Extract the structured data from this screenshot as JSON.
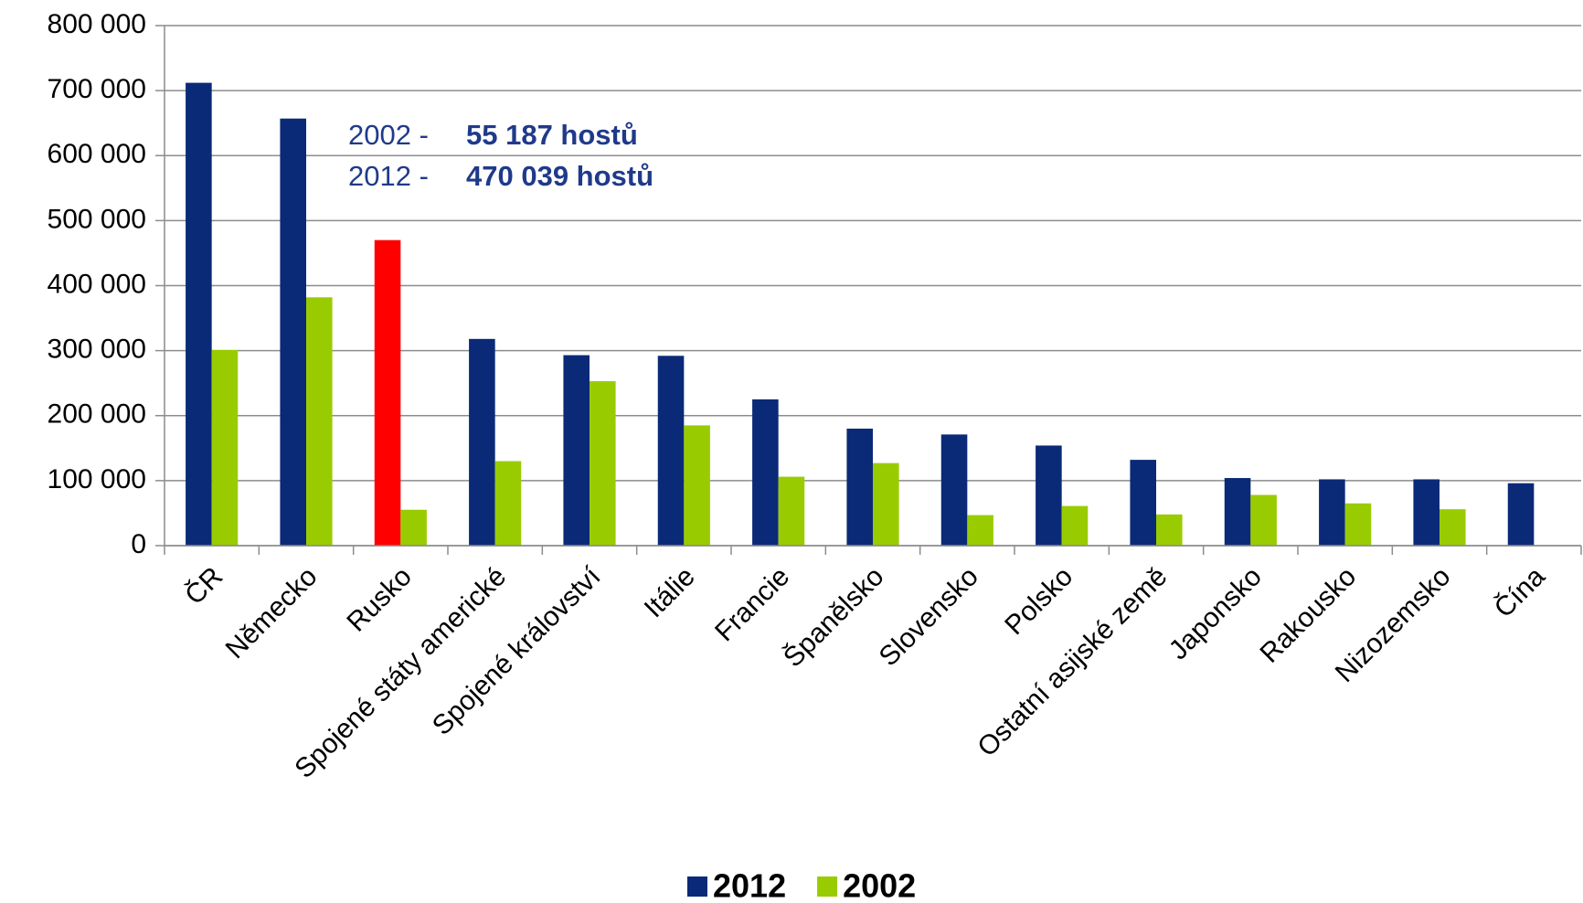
{
  "chart_data": {
    "type": "bar",
    "categories": [
      "ČR",
      "Německo",
      "Rusko",
      "Spojené státy americké",
      "Spojené království",
      "Itálie",
      "Francie",
      "Španělsko",
      "Slovensko",
      "Polsko",
      "Ostatní asijské země",
      "Japonsko",
      "Rakousko",
      "Nizozemsko",
      "Čína"
    ],
    "series": [
      {
        "name": "2012",
        "color": "#0a2a78",
        "colors": [
          "#0a2a78",
          "#0a2a78",
          "#ff0000",
          "#0a2a78",
          "#0a2a78",
          "#0a2a78",
          "#0a2a78",
          "#0a2a78",
          "#0a2a78",
          "#0a2a78",
          "#0a2a78",
          "#0a2a78",
          "#0a2a78",
          "#0a2a78",
          "#0a2a78"
        ],
        "values": [
          712000,
          657000,
          470039,
          318000,
          293000,
          292000,
          225000,
          180000,
          171000,
          154000,
          132000,
          104000,
          102000,
          102000,
          96000
        ]
      },
      {
        "name": "2002",
        "color": "#99cc00",
        "values": [
          301000,
          382000,
          55187,
          130000,
          253000,
          185000,
          106000,
          127000,
          47000,
          61000,
          48000,
          78000,
          65000,
          56000,
          null
        ]
      }
    ],
    "annotations": [
      {
        "label": "2002 - ",
        "value": "55 187 hostů"
      },
      {
        "label": "2012 - ",
        "value": "470 039 hostů"
      }
    ],
    "ylim": [
      0,
      800000
    ],
    "yticks": [
      0,
      {
        "value": 100000,
        "label": "100 000"
      },
      {
        "value": 200000,
        "label": "200 000"
      },
      {
        "value": 300000,
        "label": "300 000"
      },
      {
        "value": 400000,
        "label": "400 000"
      },
      {
        "value": 500000,
        "label": "500 000"
      },
      {
        "value": 600000,
        "label": "600 000"
      },
      {
        "value": 700000,
        "label": "700 000"
      },
      {
        "value": 800000,
        "label": "800 000"
      }
    ],
    "grid": true,
    "legend": "bottom"
  }
}
